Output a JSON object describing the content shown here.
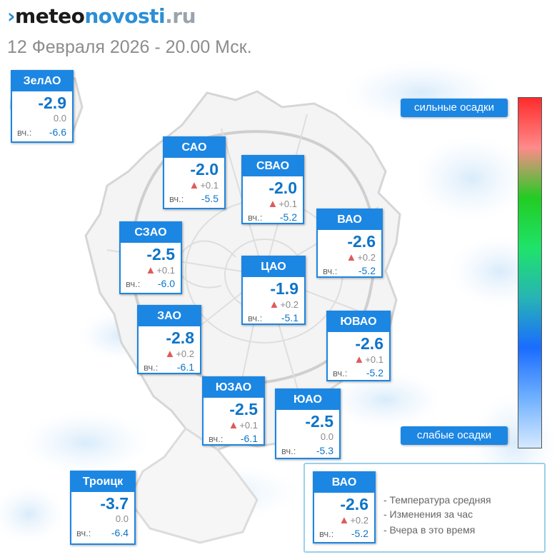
{
  "logo": {
    "mark": "›",
    "meteo": "meteo",
    "novosti": "novosti",
    "ru": ".ru"
  },
  "subtitle": "12 Февраля 2026 - 20.00 Мск.",
  "yesterday_label": "вч.:",
  "districts": {
    "zelao": {
      "name": "ЗелАО",
      "temp": "-2.9",
      "change": "0.0",
      "change_dir": "none",
      "yesterday": "-6.6"
    },
    "sao": {
      "name": "САО",
      "temp": "-2.0",
      "change": "+0.1",
      "change_dir": "up",
      "yesterday": "-5.5"
    },
    "svao": {
      "name": "СВАО",
      "temp": "-2.0",
      "change": "+0.1",
      "change_dir": "up",
      "yesterday": "-5.2"
    },
    "vao": {
      "name": "ВАО",
      "temp": "-2.6",
      "change": "+0.2",
      "change_dir": "up",
      "yesterday": "-5.2"
    },
    "szao": {
      "name": "СЗАО",
      "temp": "-2.5",
      "change": "+0.1",
      "change_dir": "up",
      "yesterday": "-6.0"
    },
    "cao": {
      "name": "ЦАО",
      "temp": "-1.9",
      "change": "+0.2",
      "change_dir": "up",
      "yesterday": "-5.1"
    },
    "zao": {
      "name": "ЗАО",
      "temp": "-2.8",
      "change": "+0.2",
      "change_dir": "up",
      "yesterday": "-6.1"
    },
    "yuvao": {
      "name": "ЮВАО",
      "temp": "-2.6",
      "change": "+0.1",
      "change_dir": "up",
      "yesterday": "-5.2"
    },
    "yuzao": {
      "name": "ЮЗАО",
      "temp": "-2.5",
      "change": "+0.1",
      "change_dir": "up",
      "yesterday": "-6.1"
    },
    "yuao": {
      "name": "ЮАО",
      "temp": "-2.5",
      "change": "0.0",
      "change_dir": "none",
      "yesterday": "-5.3"
    },
    "troick": {
      "name": "Троицк",
      "temp": "-3.7",
      "change": "0.0",
      "change_dir": "none",
      "yesterday": "-6.4"
    }
  },
  "scale": {
    "top_label": "сильные осадки",
    "bottom_label": "слабые осадки",
    "gradient_colors": [
      "#ff2b2b",
      "#ff8a8a",
      "#22cc22",
      "#1fe36a",
      "#27b4b4",
      "#1a6cff",
      "#6fb0ff",
      "#d6e9ff"
    ]
  },
  "legend": {
    "sample": {
      "name": "ВАО",
      "temp": "-2.6",
      "change": "+0.2",
      "change_dir": "up",
      "yesterday": "-5.2"
    },
    "items": [
      "- Температура средняя",
      "- Изменения за час",
      "- Вчера в это время"
    ]
  },
  "colors": {
    "accent": "#1c86e3",
    "temp": "#0d74c8",
    "change_up": "#e05a5a",
    "muted": "#8a8a8a"
  }
}
